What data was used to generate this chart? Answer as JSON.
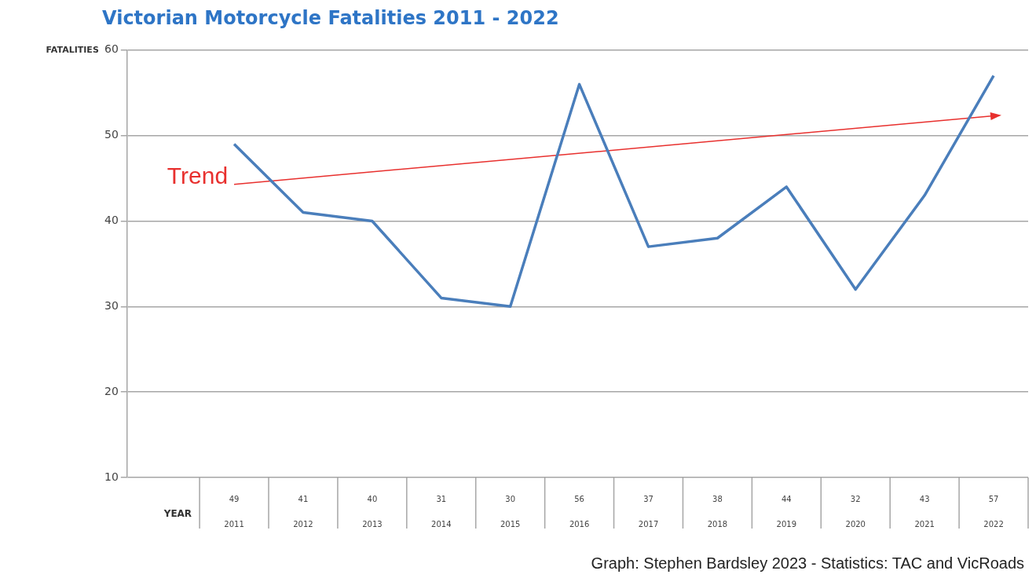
{
  "chart_data": {
    "type": "line",
    "title": "Victorian Motorcycle Fatalities 2011 - 2022",
    "ylabel": "FATALITIES",
    "xlabel": "YEAR",
    "categories": [
      "2011",
      "2012",
      "2013",
      "2014",
      "2015",
      "2016",
      "2017",
      "2018",
      "2019",
      "2020",
      "2021",
      "2022"
    ],
    "series": [
      {
        "values": [
          49,
          41,
          40,
          31,
          30,
          56,
          37,
          38,
          44,
          32,
          43,
          57
        ],
        "color": "#4a7ebb",
        "value_labels": [
          "49",
          "41",
          "40",
          "31",
          "30",
          "56",
          "37",
          "38",
          "44",
          "32",
          "43",
          "57"
        ]
      },
      {
        "name": "Trend",
        "type": "line",
        "values": [
          44.3,
          null,
          null,
          null,
          null,
          null,
          null,
          null,
          null,
          null,
          null,
          52.3
        ],
        "color": "#e8302e"
      }
    ],
    "ylim": [
      10,
      60
    ],
    "yticks": [
      10,
      20,
      30,
      40,
      50,
      60
    ],
    "grid": "y",
    "annotations": [
      "Graph: Stephen Bardsley 2023 - Statistics: TAC and VicRoads"
    ]
  }
}
